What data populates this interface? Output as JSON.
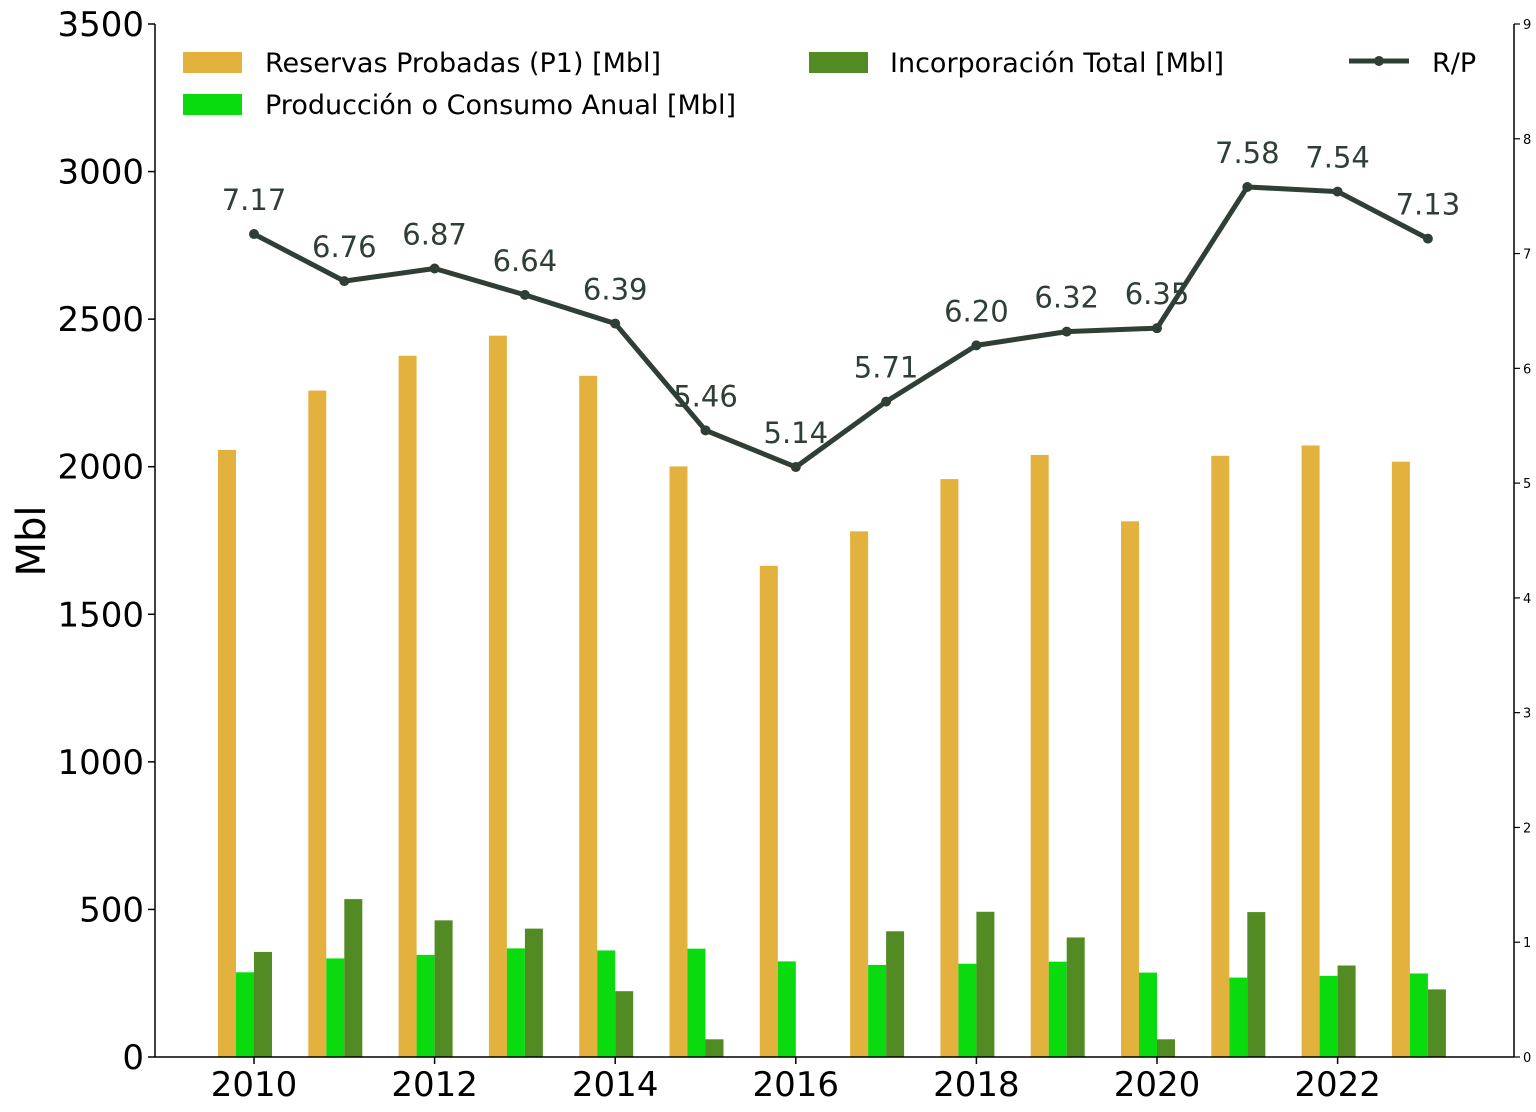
{
  "chart_data": {
    "type": "bar",
    "x": [
      2010,
      2011,
      2012,
      2013,
      2014,
      2015,
      2016,
      2017,
      2018,
      2019,
      2020,
      2021,
      2022,
      2023
    ],
    "x_ticks": [
      "2010",
      "2012",
      "2014",
      "2016",
      "2018",
      "2020",
      "2022"
    ],
    "ylabel": "Mbl",
    "ylim": [
      0,
      3500
    ],
    "y_ticks": [
      "0",
      "500",
      "1000",
      "1500",
      "2000",
      "2500",
      "3000",
      "3500"
    ],
    "y2lim": [
      0,
      9
    ],
    "y2_ticks": [
      "0",
      "1",
      "2",
      "3",
      "4",
      "5",
      "6",
      "7",
      "8",
      "9"
    ],
    "grid": false,
    "legend_position": "top",
    "series": [
      {
        "name": "Reservas Probadas (P1) [Mbl]",
        "kind": "bar",
        "color": "#e3b13e",
        "values": [
          2057,
          2258,
          2376,
          2444,
          2308,
          2001,
          1664,
          1781,
          1958,
          2040,
          1815,
          2037,
          2072,
          2017
        ]
      },
      {
        "name": "Producción o Consumo Anual [Mbl]",
        "kind": "bar",
        "color": "#0adb0f",
        "values": [
          287,
          334,
          346,
          368,
          361,
          367,
          324,
          312,
          316,
          323,
          286,
          269,
          275,
          283
        ]
      },
      {
        "name": "Incorporación Total [Mbl]",
        "kind": "bar",
        "color": "#528b24",
        "values": [
          356,
          535,
          463,
          435,
          223,
          60,
          0,
          426,
          492,
          405,
          60,
          491,
          310,
          229
        ]
      },
      {
        "name": "R/P",
        "kind": "line",
        "axis": "right",
        "color": "#2f3f36",
        "values": [
          7.17,
          6.76,
          6.87,
          6.64,
          6.39,
          5.46,
          5.14,
          5.71,
          6.2,
          6.32,
          6.35,
          7.58,
          7.54,
          7.13
        ],
        "labels": [
          "7.17",
          "6.76",
          "6.87",
          "6.64",
          "6.39",
          "5.46",
          "5.14",
          "5.71",
          "6.20",
          "6.32",
          "6.35",
          "7.58",
          "7.54",
          "7.13"
        ]
      }
    ]
  }
}
